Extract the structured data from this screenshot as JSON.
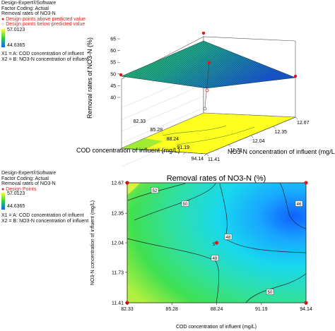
{
  "legend_top": {
    "software": "Design-Expert®Software",
    "coding": "Factor Coding: Actual",
    "response": "Removal rates of NO3-N",
    "marker_above": "Design points above predicted value",
    "marker_below": "Design points below predicted value",
    "max": "57.0123",
    "min": "44.6365",
    "x1": "X1 = A: COD   concentration of influent",
    "x2": "X2 = B: NO3-N  concentration of influent"
  },
  "legend_bottom": {
    "software": "Design-Expert®Software",
    "coding": "Factor Coding: Actual",
    "response": "Removal rates of NO3-N",
    "marker": "Design Points",
    "max": "57.0123",
    "min": "44.6365",
    "x1": "X1 = A: COD   concentration of influent",
    "x2": "X2 = B: NO3-N  concentration of influent"
  },
  "colors": {
    "yellow": "#ffff20",
    "green": "#2fd84a",
    "cyan": "#18d4f0",
    "blue": "#1060ff",
    "design_point": "#e01818"
  },
  "chart_data": [
    {
      "type": "surface",
      "zlabel": "Removal rates of NO3-N (%)",
      "xlabel": "COD concentration of influent (mg/L)",
      "ylabel": "NO3-N concentration of influent (mg/L)",
      "x_ticks": [
        "82.33",
        "85.28",
        "88.24",
        "91.19",
        "94.14"
      ],
      "y_ticks": [
        "11.41",
        "11.73",
        "12.04",
        "12.35",
        "12.67"
      ],
      "z_ticks": [
        "40",
        "45",
        "50",
        "55",
        "60",
        "65"
      ],
      "zlim": [
        40,
        65
      ],
      "corners": [
        {
          "x": 82.33,
          "y": 11.41,
          "z": 49.5
        },
        {
          "x": 94.14,
          "y": 11.41,
          "z": 51.5
        },
        {
          "x": 94.14,
          "y": 12.67,
          "z": 44.6
        },
        {
          "x": 82.33,
          "y": 12.67,
          "z": 57.0
        }
      ],
      "center_point": {
        "x": 88.24,
        "y": 12.04,
        "z": 49.0
      }
    },
    {
      "type": "contour",
      "title": "Removal rates of NO3-N (%)",
      "xlabel": "COD concentration of influent (mg/L)",
      "ylabel": "NO3-N concentration of influent (mg/L)",
      "x_ticks": [
        "82.33",
        "85.28",
        "88.24",
        "91.19",
        "94.14"
      ],
      "y_ticks": [
        "11.41",
        "11.73",
        "12.04",
        "12.35",
        "12.67"
      ],
      "contour_labels": [
        "52",
        "50",
        "48",
        "48",
        "46",
        "50"
      ],
      "center_label": "5",
      "design_points": [
        {
          "x": 82.33,
          "y": 12.67
        },
        {
          "x": 94.14,
          "y": 12.67
        },
        {
          "x": 82.33,
          "y": 11.41
        },
        {
          "x": 94.14,
          "y": 11.41
        },
        {
          "x": 88.24,
          "y": 12.04
        }
      ]
    }
  ]
}
